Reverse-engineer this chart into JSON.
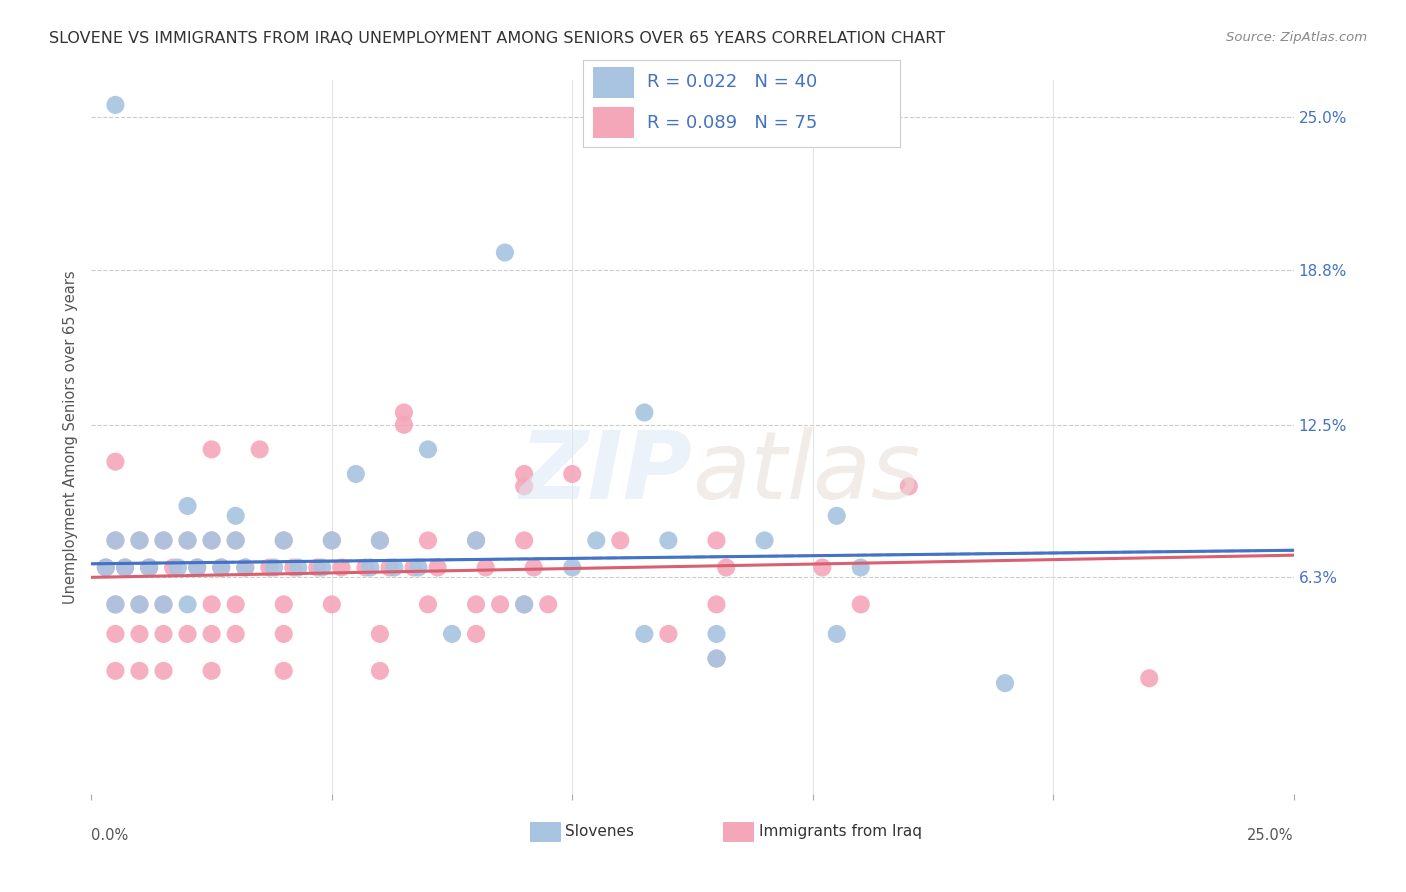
{
  "title": "SLOVENE VS IMMIGRANTS FROM IRAQ UNEMPLOYMENT AMONG SENIORS OVER 65 YEARS CORRELATION CHART",
  "source": "Source: ZipAtlas.com",
  "ylabel": "Unemployment Among Seniors over 65 years",
  "legend_label_blue": "Slovenes",
  "legend_label_pink": "Immigrants from Iraq",
  "blue_color": "#a8c4e0",
  "pink_color": "#f4a7b9",
  "line_blue": "#4472C4",
  "line_pink": "#D96070",
  "xmin": 0.0,
  "xmax": 0.25,
  "ymin": -0.025,
  "ymax": 0.265,
  "ytick_vals": [
    0.063,
    0.125,
    0.188,
    0.25
  ],
  "ytick_labels": [
    "6.3%",
    "12.5%",
    "18.8%",
    "25.0%"
  ],
  "blue_trend": [
    0.0685,
    0.074
  ],
  "pink_trend": [
    0.063,
    0.072
  ],
  "blue_points": [
    [
      0.005,
      0.255
    ],
    [
      0.086,
      0.195
    ],
    [
      0.115,
      0.13
    ],
    [
      0.07,
      0.115
    ],
    [
      0.055,
      0.105
    ],
    [
      0.02,
      0.092
    ],
    [
      0.03,
      0.088
    ],
    [
      0.155,
      0.088
    ],
    [
      0.005,
      0.078
    ],
    [
      0.01,
      0.078
    ],
    [
      0.015,
      0.078
    ],
    [
      0.02,
      0.078
    ],
    [
      0.025,
      0.078
    ],
    [
      0.03,
      0.078
    ],
    [
      0.04,
      0.078
    ],
    [
      0.05,
      0.078
    ],
    [
      0.06,
      0.078
    ],
    [
      0.08,
      0.078
    ],
    [
      0.105,
      0.078
    ],
    [
      0.12,
      0.078
    ],
    [
      0.14,
      0.078
    ],
    [
      0.003,
      0.067
    ],
    [
      0.007,
      0.067
    ],
    [
      0.012,
      0.067
    ],
    [
      0.018,
      0.067
    ],
    [
      0.022,
      0.067
    ],
    [
      0.027,
      0.067
    ],
    [
      0.032,
      0.067
    ],
    [
      0.038,
      0.067
    ],
    [
      0.043,
      0.067
    ],
    [
      0.048,
      0.067
    ],
    [
      0.058,
      0.067
    ],
    [
      0.063,
      0.067
    ],
    [
      0.068,
      0.067
    ],
    [
      0.1,
      0.067
    ],
    [
      0.16,
      0.067
    ],
    [
      0.005,
      0.052
    ],
    [
      0.01,
      0.052
    ],
    [
      0.015,
      0.052
    ],
    [
      0.02,
      0.052
    ],
    [
      0.09,
      0.052
    ],
    [
      0.075,
      0.04
    ],
    [
      0.115,
      0.04
    ],
    [
      0.13,
      0.04
    ],
    [
      0.155,
      0.04
    ],
    [
      0.13,
      0.03
    ],
    [
      0.19,
      0.02
    ]
  ],
  "pink_points": [
    [
      0.005,
      0.11
    ],
    [
      0.025,
      0.115
    ],
    [
      0.035,
      0.115
    ],
    [
      0.065,
      0.13
    ],
    [
      0.065,
      0.125
    ],
    [
      0.09,
      0.105
    ],
    [
      0.09,
      0.1
    ],
    [
      0.1,
      0.105
    ],
    [
      0.17,
      0.1
    ],
    [
      0.005,
      0.078
    ],
    [
      0.01,
      0.078
    ],
    [
      0.015,
      0.078
    ],
    [
      0.02,
      0.078
    ],
    [
      0.025,
      0.078
    ],
    [
      0.03,
      0.078
    ],
    [
      0.04,
      0.078
    ],
    [
      0.05,
      0.078
    ],
    [
      0.06,
      0.078
    ],
    [
      0.07,
      0.078
    ],
    [
      0.08,
      0.078
    ],
    [
      0.09,
      0.078
    ],
    [
      0.11,
      0.078
    ],
    [
      0.13,
      0.078
    ],
    [
      0.003,
      0.067
    ],
    [
      0.007,
      0.067
    ],
    [
      0.012,
      0.067
    ],
    [
      0.017,
      0.067
    ],
    [
      0.022,
      0.067
    ],
    [
      0.027,
      0.067
    ],
    [
      0.032,
      0.067
    ],
    [
      0.037,
      0.067
    ],
    [
      0.042,
      0.067
    ],
    [
      0.047,
      0.067
    ],
    [
      0.052,
      0.067
    ],
    [
      0.057,
      0.067
    ],
    [
      0.062,
      0.067
    ],
    [
      0.067,
      0.067
    ],
    [
      0.072,
      0.067
    ],
    [
      0.082,
      0.067
    ],
    [
      0.092,
      0.067
    ],
    [
      0.132,
      0.067
    ],
    [
      0.152,
      0.067
    ],
    [
      0.005,
      0.052
    ],
    [
      0.01,
      0.052
    ],
    [
      0.015,
      0.052
    ],
    [
      0.025,
      0.052
    ],
    [
      0.03,
      0.052
    ],
    [
      0.04,
      0.052
    ],
    [
      0.05,
      0.052
    ],
    [
      0.07,
      0.052
    ],
    [
      0.08,
      0.052
    ],
    [
      0.085,
      0.052
    ],
    [
      0.09,
      0.052
    ],
    [
      0.095,
      0.052
    ],
    [
      0.13,
      0.052
    ],
    [
      0.16,
      0.052
    ],
    [
      0.005,
      0.04
    ],
    [
      0.01,
      0.04
    ],
    [
      0.015,
      0.04
    ],
    [
      0.02,
      0.04
    ],
    [
      0.025,
      0.04
    ],
    [
      0.03,
      0.04
    ],
    [
      0.04,
      0.04
    ],
    [
      0.06,
      0.04
    ],
    [
      0.08,
      0.04
    ],
    [
      0.12,
      0.04
    ],
    [
      0.005,
      0.025
    ],
    [
      0.01,
      0.025
    ],
    [
      0.015,
      0.025
    ],
    [
      0.025,
      0.025
    ],
    [
      0.04,
      0.025
    ],
    [
      0.06,
      0.025
    ],
    [
      0.13,
      0.03
    ],
    [
      0.22,
      0.022
    ]
  ]
}
